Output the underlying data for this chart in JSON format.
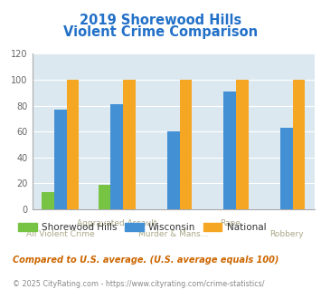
{
  "title_line1": "2019 Shorewood Hills",
  "title_line2": "Violent Crime Comparison",
  "categories": [
    "All Violent Crime",
    "Aggravated Assault",
    "Murder & Mans...",
    "Rape",
    "Robbery"
  ],
  "shorewood_hills": [
    13,
    19,
    0,
    0,
    0
  ],
  "wisconsin": [
    77,
    81,
    60,
    91,
    63
  ],
  "national": [
    100,
    100,
    100,
    100,
    100
  ],
  "colors": {
    "shorewood": "#77c344",
    "wisconsin": "#4490d4",
    "national": "#f5a623"
  },
  "ylim": [
    0,
    120
  ],
  "yticks": [
    0,
    20,
    40,
    60,
    80,
    100,
    120
  ],
  "title_color": "#2270c8",
  "tick_label_color": "#aaa888",
  "footnote": "Compared to U.S. average. (U.S. average equals 100)",
  "copyright": "© 2025 CityRating.com - https://www.cityrating.com/crime-statistics/",
  "plot_bg": "#dce8f0",
  "bar_width": 0.22,
  "legend_labels": [
    "Shorewood Hills",
    "Wisconsin",
    "National"
  ],
  "footnote_color": "#cc6600",
  "copyright_color": "#888888",
  "copyright_link_color": "#4490d4"
}
